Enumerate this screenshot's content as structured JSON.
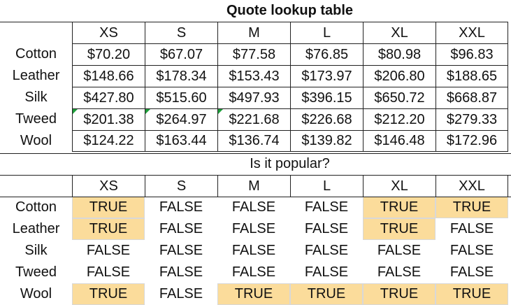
{
  "quote": {
    "title": "Quote lookup table",
    "sizes": [
      "XS",
      "S",
      "M",
      "L",
      "XL",
      "XXL"
    ],
    "rows": [
      {
        "label": "Cotton",
        "values": [
          "$70.20",
          "$67.07",
          "$77.58",
          "$76.85",
          "$80.98",
          "$96.83"
        ]
      },
      {
        "label": "Leather",
        "values": [
          "$148.66",
          "$178.34",
          "$153.43",
          "$173.97",
          "$206.80",
          "$188.65"
        ]
      },
      {
        "label": "Silk",
        "values": [
          "$427.80",
          "$515.60",
          "$497.93",
          "$396.15",
          "$650.72",
          "$668.87"
        ]
      },
      {
        "label": "Tweed",
        "values": [
          "$201.38",
          "$264.97",
          "$221.68",
          "$226.68",
          "$212.20",
          "$279.33"
        ]
      },
      {
        "label": "Wool",
        "values": [
          "$124.22",
          "$163.44",
          "$136.74",
          "$139.82",
          "$146.48",
          "$172.96"
        ]
      }
    ]
  },
  "popular": {
    "title": "Is it popular?",
    "sizes": [
      "XS",
      "S",
      "M",
      "L",
      "XL",
      "XXL"
    ],
    "rows": [
      {
        "label": "Cotton",
        "values": [
          "TRUE",
          "FALSE",
          "FALSE",
          "FALSE",
          "TRUE",
          "TRUE"
        ]
      },
      {
        "label": "Leather",
        "values": [
          "TRUE",
          "FALSE",
          "FALSE",
          "FALSE",
          "TRUE",
          "FALSE"
        ]
      },
      {
        "label": "Silk",
        "values": [
          "FALSE",
          "FALSE",
          "FALSE",
          "FALSE",
          "FALSE",
          "FALSE"
        ]
      },
      {
        "label": "Tweed",
        "values": [
          "FALSE",
          "FALSE",
          "FALSE",
          "FALSE",
          "FALSE",
          "FALSE"
        ]
      },
      {
        "label": "Wool",
        "values": [
          "TRUE",
          "FALSE",
          "TRUE",
          "TRUE",
          "TRUE",
          "TRUE"
        ]
      }
    ]
  },
  "colors": {
    "highlight": "#fbdc9b",
    "comment_marker": "#1e9e3a",
    "grid": "#222222"
  }
}
